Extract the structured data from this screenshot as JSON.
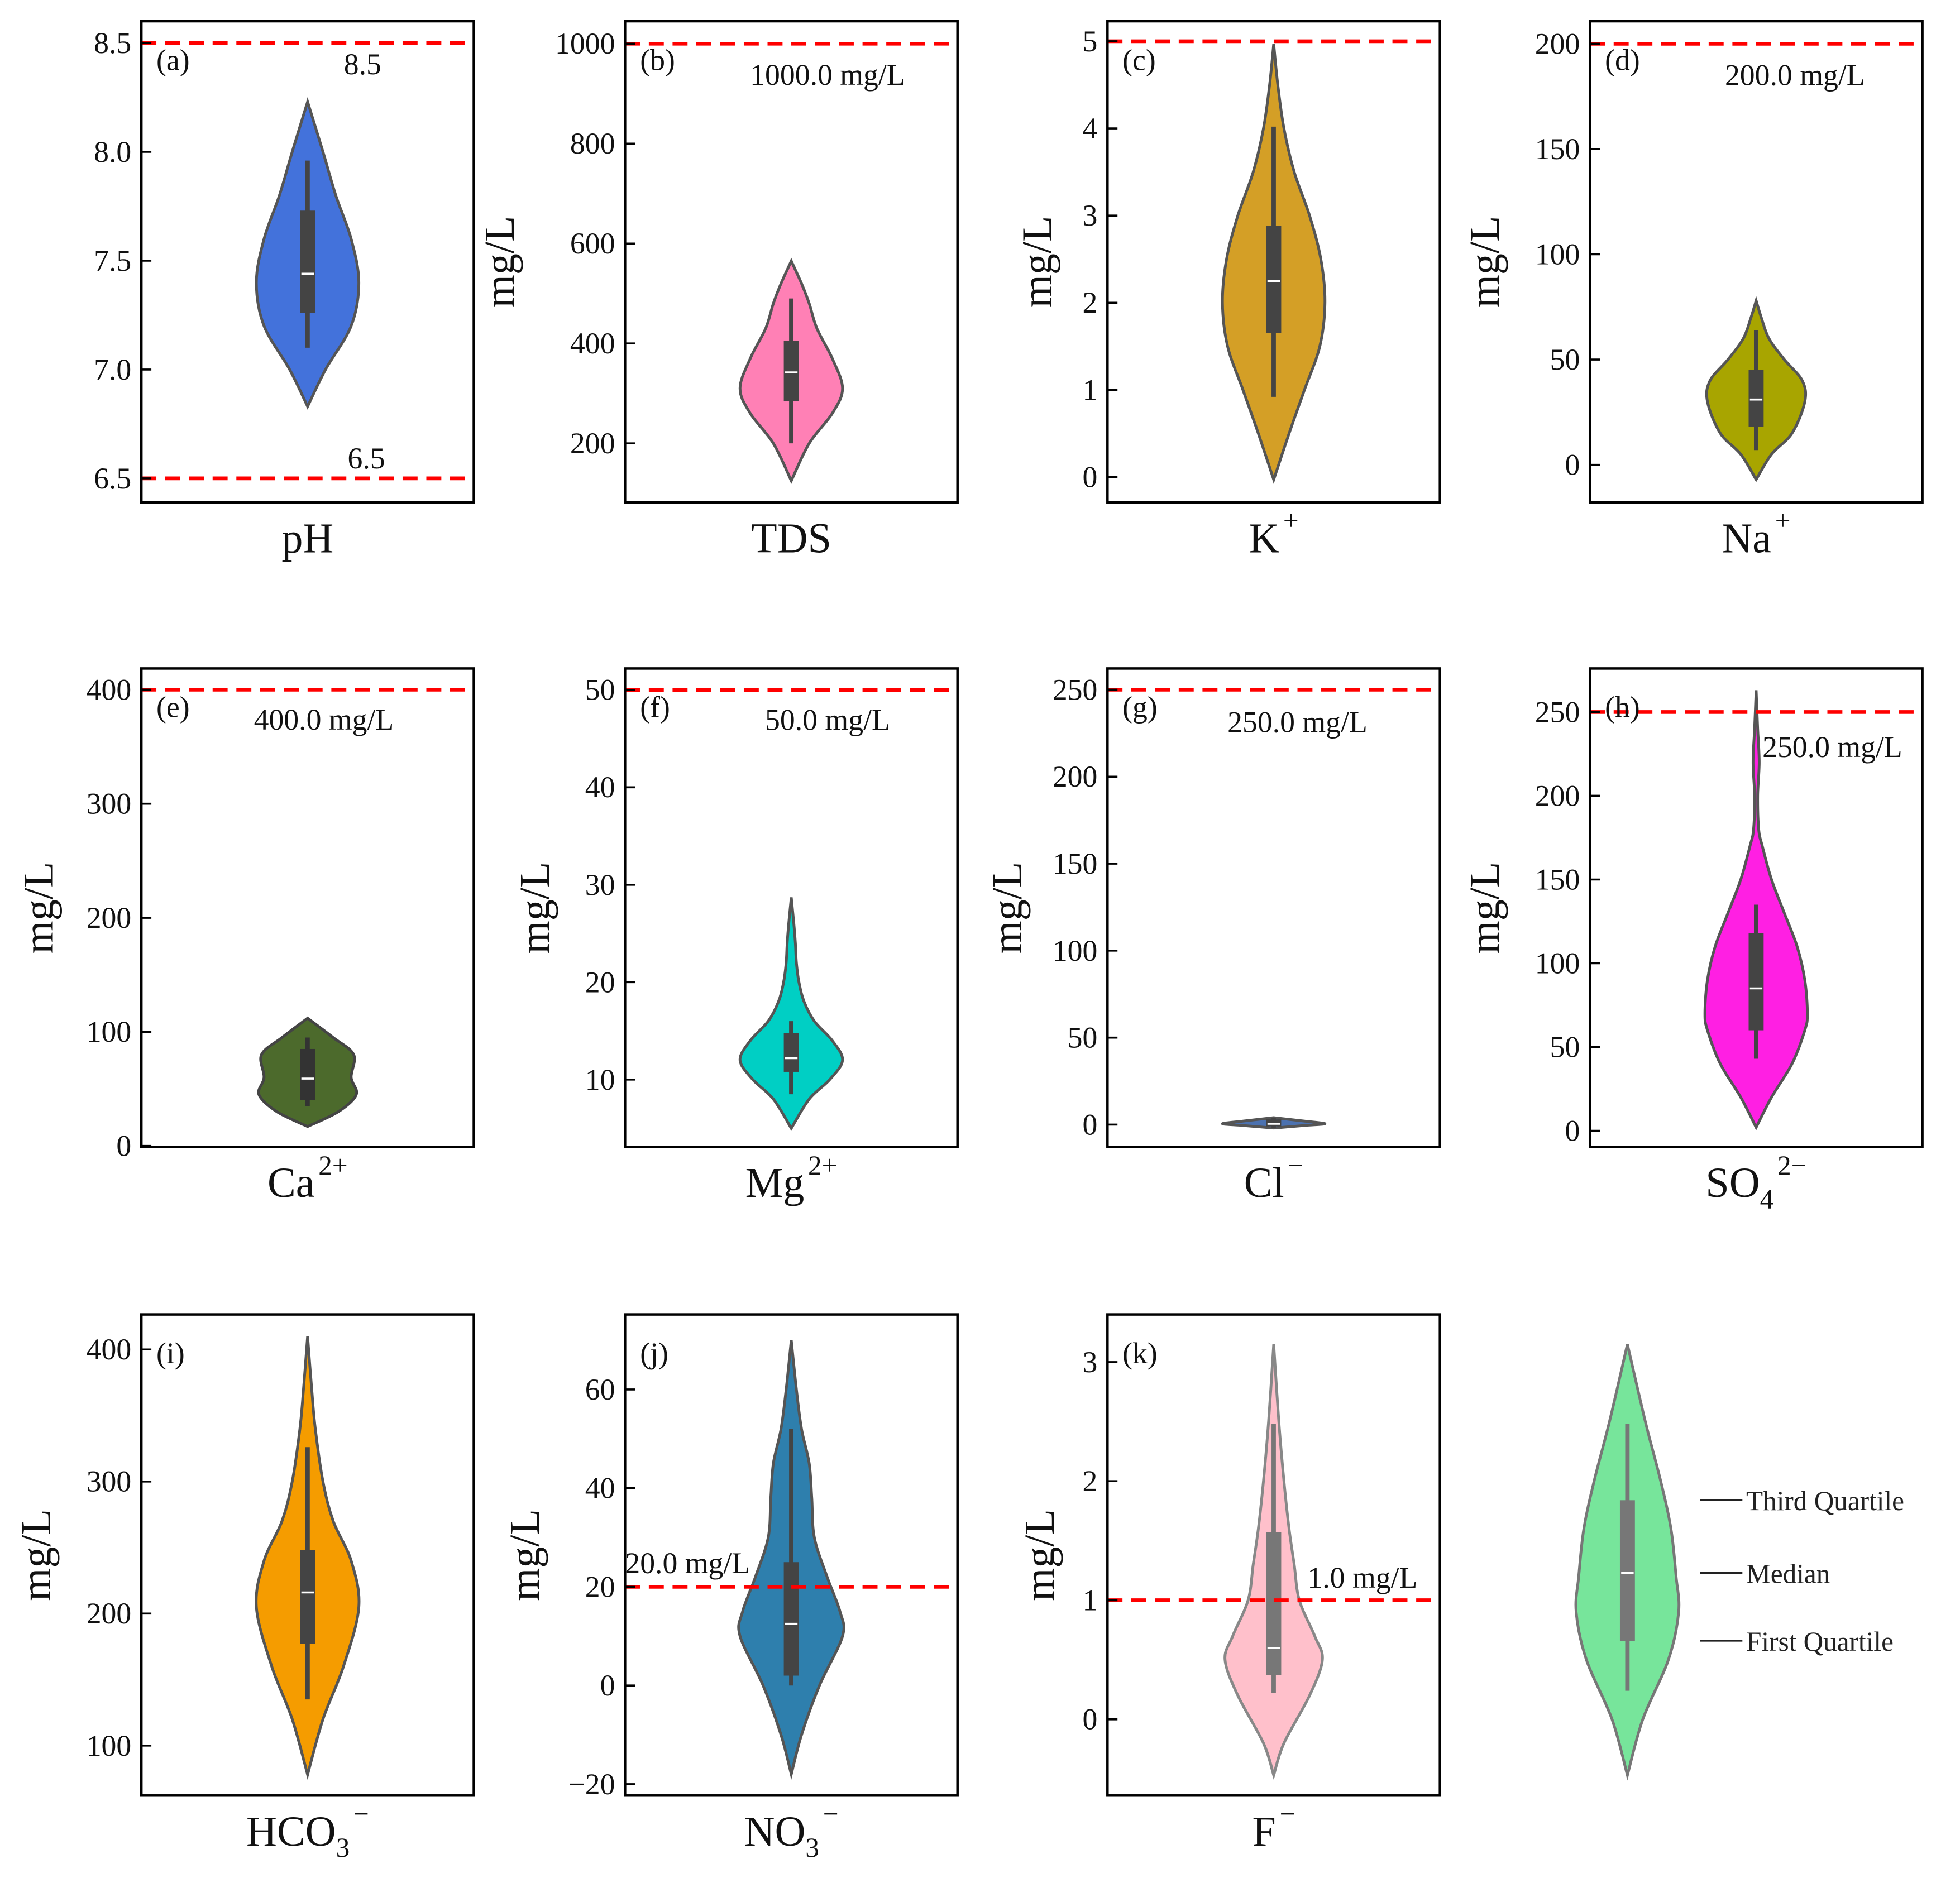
{
  "chart_data": [
    {
      "type": "violin",
      "id": "a",
      "panel_label": "(a)",
      "xlabel": {
        "base": "pH",
        "sub": "",
        "sup": ""
      },
      "ylabel": "",
      "ylim": [
        6.39,
        8.6
      ],
      "ticks": [
        6.5,
        7.0,
        7.5,
        8.0,
        8.5
      ],
      "tick_labels": [
        "6.5",
        "7.0",
        "7.5",
        "8.0",
        "8.5"
      ],
      "color": "#4372db",
      "edge": "#555555",
      "box_color": "#444444",
      "profile": [
        [
          6.83,
          0
        ],
        [
          7.0,
          0.35
        ],
        [
          7.2,
          0.85
        ],
        [
          7.4,
          1.0
        ],
        [
          7.6,
          0.85
        ],
        [
          7.8,
          0.55
        ],
        [
          8.0,
          0.3
        ],
        [
          8.23,
          0
        ]
      ],
      "box": {
        "whisker_low": 7.1,
        "q1": 7.26,
        "median": 7.44,
        "q3": 7.73,
        "whisker_high": 7.96
      },
      "thresholds": [
        {
          "value": 8.5,
          "label": "8.5"
        },
        {
          "value": 6.5,
          "label": "6.5"
        }
      ]
    },
    {
      "type": "violin",
      "id": "b",
      "panel_label": "(b)",
      "xlabel": {
        "base": "TDS",
        "sub": "",
        "sup": ""
      },
      "ylabel": "mg/L",
      "ylim": [
        82,
        1045
      ],
      "ticks": [
        200,
        400,
        600,
        800,
        1000
      ],
      "tick_labels": [
        "200",
        "400",
        "600",
        "800",
        "1000"
      ],
      "color": "#ff80b5",
      "edge": "#555555",
      "box_color": "#444444",
      "profile": [
        [
          125,
          0
        ],
        [
          200,
          0.35
        ],
        [
          260,
          0.8
        ],
        [
          310,
          1.0
        ],
        [
          370,
          0.8
        ],
        [
          430,
          0.5
        ],
        [
          480,
          0.35
        ],
        [
          520,
          0.2
        ],
        [
          565,
          0
        ]
      ],
      "box": {
        "whisker_low": 200,
        "q1": 285,
        "median": 342,
        "q3": 405,
        "whisker_high": 490
      },
      "thresholds": [
        {
          "value": 1000,
          "label": "1000.0 mg/L"
        }
      ]
    },
    {
      "type": "violin",
      "id": "c",
      "panel_label": "(c)",
      "xlabel": {
        "base": "K",
        "sub": "",
        "sup": "+"
      },
      "ylabel": "mg/L",
      "ylim": [
        -0.29,
        5.23
      ],
      "ticks": [
        0,
        1,
        2,
        3,
        4,
        5
      ],
      "tick_labels": [
        "0",
        "1",
        "2",
        "3",
        "4",
        "5"
      ],
      "color": "#d49f26",
      "edge": "#555555",
      "box_color": "#444444",
      "profile": [
        [
          -0.03,
          0
        ],
        [
          0.5,
          0.3
        ],
        [
          1,
          0.6
        ],
        [
          1.5,
          0.9
        ],
        [
          2,
          1.0
        ],
        [
          2.5,
          0.92
        ],
        [
          3,
          0.7
        ],
        [
          3.5,
          0.4
        ],
        [
          4,
          0.2
        ],
        [
          4.5,
          0.08
        ],
        [
          4.97,
          0
        ]
      ],
      "box": {
        "whisker_low": 0.92,
        "q1": 1.65,
        "median": 2.25,
        "q3": 2.88,
        "whisker_high": 4.02
      },
      "thresholds": [
        {
          "value": 5,
          "label": ""
        }
      ]
    },
    {
      "type": "violin",
      "id": "d",
      "panel_label": "(d)",
      "xlabel": {
        "base": "Na",
        "sub": "",
        "sup": "+"
      },
      "ylabel": "mg/L",
      "ylim": [
        -17.8,
        210.7
      ],
      "ticks": [
        0,
        50,
        100,
        150,
        200
      ],
      "tick_labels": [
        "0",
        "50",
        "100",
        "150",
        "200"
      ],
      "color": "#a8a500",
      "edge": "#555555",
      "box_color": "#444444",
      "profile": [
        [
          -7,
          0
        ],
        [
          5,
          0.3
        ],
        [
          15,
          0.7
        ],
        [
          30,
          0.95
        ],
        [
          40,
          0.9
        ],
        [
          50,
          0.55
        ],
        [
          60,
          0.25
        ],
        [
          70,
          0.1
        ],
        [
          78,
          0
        ]
      ],
      "box": {
        "whisker_low": 7,
        "q1": 18,
        "median": 31,
        "q3": 45,
        "whisker_high": 64
      },
      "thresholds": [
        {
          "value": 200,
          "label": "200.0 mg/L"
        }
      ]
    },
    {
      "type": "violin",
      "id": "e",
      "panel_label": "(e)",
      "xlabel": {
        "base": "Ca",
        "sub": "",
        "sup": "2+"
      },
      "ylabel": "mg/L",
      "ylim": [
        -1,
        418.6
      ],
      "ticks": [
        0,
        100,
        200,
        300,
        400
      ],
      "tick_labels": [
        "0",
        "100",
        "200",
        "300",
        "400"
      ],
      "color": "#4c6a2c",
      "edge": "#444444",
      "box_color": "#333333",
      "profile": [
        [
          17,
          0
        ],
        [
          30,
          0.6
        ],
        [
          45,
          0.95
        ],
        [
          60,
          0.85
        ],
        [
          80,
          0.9
        ],
        [
          95,
          0.5
        ],
        [
          112,
          0
        ]
      ],
      "box": {
        "whisker_low": 35,
        "q1": 40,
        "median": 59,
        "q3": 85,
        "whisker_high": 95
      },
      "thresholds": [
        {
          "value": 400,
          "label": "400.0 mg/L"
        }
      ]
    },
    {
      "type": "violin",
      "id": "f",
      "panel_label": "(f)",
      "xlabel": {
        "base": "Mg",
        "sub": "",
        "sup": "2+"
      },
      "ylabel": "mg/L",
      "ylim": [
        3.08,
        52.2
      ],
      "ticks": [
        10,
        20,
        30,
        40,
        50
      ],
      "tick_labels": [
        "10",
        "20",
        "30",
        "40",
        "50"
      ],
      "color": "#00cfc4",
      "edge": "#555555",
      "box_color": "#444444",
      "profile": [
        [
          5,
          0
        ],
        [
          8,
          0.35
        ],
        [
          10,
          0.75
        ],
        [
          12,
          1.0
        ],
        [
          14,
          0.8
        ],
        [
          16,
          0.45
        ],
        [
          18,
          0.25
        ],
        [
          20,
          0.15
        ],
        [
          22,
          0.1
        ],
        [
          24,
          0.08
        ],
        [
          26,
          0.05
        ],
        [
          28.7,
          0
        ]
      ],
      "box": {
        "whisker_low": 8.5,
        "q1": 10.8,
        "median": 12.2,
        "q3": 14.8,
        "whisker_high": 16
      },
      "thresholds": [
        {
          "value": 50,
          "label": "50.0 mg/L"
        }
      ]
    },
    {
      "type": "violin",
      "id": "g",
      "panel_label": "(g)",
      "xlabel": {
        "base": "Cl",
        "sub": "",
        "sup": "−"
      },
      "ylabel": "mg/L",
      "ylim": [
        -12.9,
        262.2
      ],
      "ticks": [
        0,
        50,
        100,
        150,
        200,
        250
      ],
      "tick_labels": [
        "0",
        "50",
        "100",
        "150",
        "200",
        "250"
      ],
      "color": "#4c72b0",
      "edge": "#555555",
      "box_color": "#444444",
      "profile": [
        [
          -2,
          0
        ],
        [
          -0.5,
          0.6
        ],
        [
          0.5,
          1.0
        ],
        [
          2,
          0.6
        ],
        [
          4,
          0
        ]
      ],
      "box": {
        "whisker_low": -2,
        "q1": -1,
        "median": 0.5,
        "q3": 3,
        "whisker_high": 4
      },
      "thresholds": [
        {
          "value": 250,
          "label": "250.0 mg/L"
        }
      ]
    },
    {
      "type": "violin",
      "id": "h",
      "panel_label": "(h)",
      "xlabel": {
        "base": "SO",
        "sub": "4",
        "sup": "2−"
      },
      "ylabel": "mg/L",
      "ylim": [
        -9.7,
        276
      ],
      "ticks": [
        0,
        50,
        100,
        150,
        200,
        250
      ],
      "tick_labels": [
        "0",
        "50",
        "100",
        "150",
        "200",
        "250"
      ],
      "color": "#ff1fe3",
      "edge": "#555555",
      "box_color": "#444444",
      "profile": [
        [
          2,
          0
        ],
        [
          20,
          0.3
        ],
        [
          40,
          0.7
        ],
        [
          60,
          0.95
        ],
        [
          70,
          1.0
        ],
        [
          90,
          0.95
        ],
        [
          110,
          0.8
        ],
        [
          130,
          0.55
        ],
        [
          150,
          0.3
        ],
        [
          170,
          0.12
        ],
        [
          180,
          0.05
        ],
        [
          200,
          0.03
        ],
        [
          220,
          0.06
        ],
        [
          240,
          0.03
        ],
        [
          263,
          0
        ]
      ],
      "box": {
        "whisker_low": 43,
        "q1": 60,
        "median": 85,
        "q3": 118,
        "whisker_high": 135
      },
      "thresholds": [
        {
          "value": 250,
          "label": "250.0 mg/L"
        }
      ]
    },
    {
      "type": "violin",
      "id": "i",
      "panel_label": "(i)",
      "xlabel": {
        "base": "HCO",
        "sub": "3",
        "sup": "−"
      },
      "ylabel": "mg/L",
      "ylim": [
        62.2,
        426.5
      ],
      "ticks": [
        100,
        200,
        300,
        400
      ],
      "tick_labels": [
        "100",
        "200",
        "300",
        "400"
      ],
      "color": "#f59c00",
      "edge": "#555555",
      "box_color": "#444444",
      "profile": [
        [
          78,
          0
        ],
        [
          120,
          0.3
        ],
        [
          160,
          0.7
        ],
        [
          205,
          1.0
        ],
        [
          240,
          0.85
        ],
        [
          270,
          0.5
        ],
        [
          300,
          0.3
        ],
        [
          340,
          0.15
        ],
        [
          370,
          0.08
        ],
        [
          410,
          0
        ]
      ],
      "box": {
        "whisker_low": 135,
        "q1": 177,
        "median": 216,
        "q3": 248,
        "whisker_high": 326
      },
      "thresholds": []
    },
    {
      "type": "violin",
      "id": "j",
      "panel_label": "(j)",
      "xlabel": {
        "base": "NO",
        "sub": "3",
        "sup": "−"
      },
      "ylabel": "mg/L",
      "ylim": [
        -22.3,
        75.2
      ],
      "ticks": [
        -20,
        0,
        20,
        40,
        60
      ],
      "tick_labels": [
        "−20",
        "0",
        "20",
        "40",
        "60"
      ],
      "color": "#2e7fad",
      "edge": "#555555",
      "box_color": "#444444",
      "profile": [
        [
          -18,
          0
        ],
        [
          -10,
          0.2
        ],
        [
          0,
          0.55
        ],
        [
          10,
          1.0
        ],
        [
          15,
          0.95
        ],
        [
          22,
          0.7
        ],
        [
          30,
          0.45
        ],
        [
          38,
          0.4
        ],
        [
          45,
          0.35
        ],
        [
          52,
          0.2
        ],
        [
          60,
          0.1
        ],
        [
          70,
          0
        ]
      ],
      "box": {
        "whisker_low": 0,
        "q1": 2,
        "median": 12.5,
        "q3": 25,
        "whisker_high": 52
      },
      "thresholds": [
        {
          "value": 20,
          "label": "20.0 mg/L"
        }
      ]
    },
    {
      "type": "violin",
      "id": "k",
      "panel_label": "(k)",
      "xlabel": {
        "base": "F",
        "sub": "",
        "sup": "−"
      },
      "ylabel": "mg/L",
      "ylim": [
        -0.64,
        3.4
      ],
      "ticks": [
        0,
        1,
        2,
        3
      ],
      "tick_labels": [
        "0",
        "1",
        "2",
        "3"
      ],
      "color": "#ffc0cb",
      "edge": "#888888",
      "box_color": "#777777",
      "profile": [
        [
          -0.47,
          0
        ],
        [
          -0.2,
          0.2
        ],
        [
          0.2,
          0.7
        ],
        [
          0.5,
          0.95
        ],
        [
          0.7,
          0.8
        ],
        [
          1.0,
          0.5
        ],
        [
          1.3,
          0.4
        ],
        [
          1.6,
          0.3
        ],
        [
          2.0,
          0.2
        ],
        [
          2.5,
          0.1
        ],
        [
          3.15,
          0
        ]
      ],
      "box": {
        "whisker_low": 0.22,
        "q1": 0.37,
        "median": 0.6,
        "q3": 1.57,
        "whisker_high": 2.48
      },
      "thresholds": [
        {
          "value": 1.0,
          "label": "1.0 mg/L"
        }
      ]
    }
  ],
  "legend": {
    "color": "#77e59b",
    "edge": "#777777",
    "box_color": "#777777",
    "ylim": [
      -0.64,
      3.4
    ],
    "profile": [
      [
        -0.47,
        0
      ],
      [
        0,
        0.3
      ],
      [
        0.5,
        0.8
      ],
      [
        0.9,
        1.0
      ],
      [
        1.2,
        0.95
      ],
      [
        1.6,
        0.85
      ],
      [
        2.0,
        0.65
      ],
      [
        2.5,
        0.35
      ],
      [
        3.15,
        0
      ]
    ],
    "box": {
      "whisker_low": 0.24,
      "q1": 0.66,
      "median": 1.23,
      "q3": 1.84,
      "whisker_high": 2.48
    },
    "items": [
      "Third Quartile",
      "Median",
      "First Quartile"
    ]
  },
  "threshold_color": "#ff0000"
}
